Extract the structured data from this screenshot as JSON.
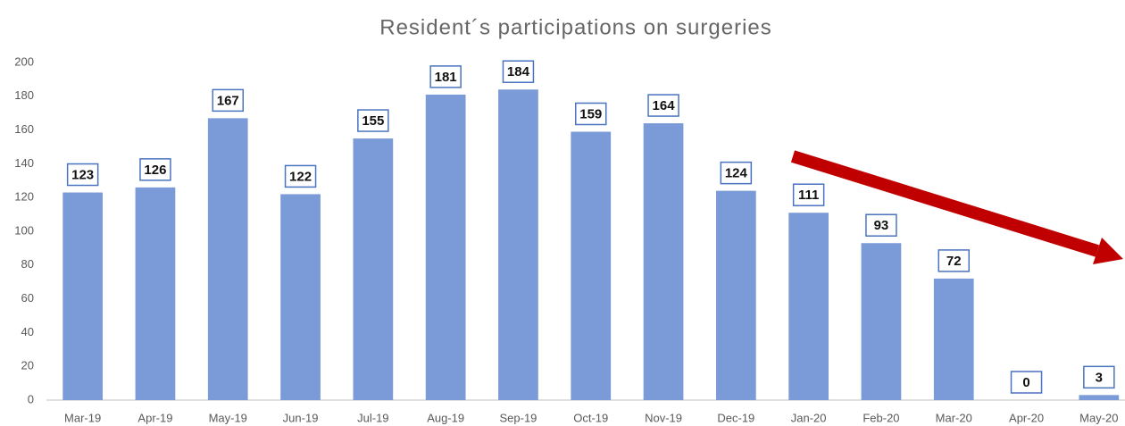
{
  "chart_data": {
    "type": "bar",
    "title": "Resident´s participations on surgeries",
    "categories": [
      "Mar-19",
      "Apr-19",
      "May-19",
      "Jun-19",
      "Jul-19",
      "Aug-19",
      "Sep-19",
      "Oct-19",
      "Nov-19",
      "Dec-19",
      "Jan-20",
      "Feb-20",
      "Mar-20",
      "Apr-20",
      "May-20"
    ],
    "values": [
      123,
      126,
      167,
      122,
      155,
      181,
      184,
      159,
      164,
      124,
      111,
      93,
      72,
      0,
      3
    ],
    "color": "#7b9bd8",
    "ylim": [
      0,
      200
    ],
    "yticks": [
      0,
      20,
      40,
      60,
      80,
      100,
      120,
      140,
      160,
      180,
      200
    ],
    "grid": false
  }
}
